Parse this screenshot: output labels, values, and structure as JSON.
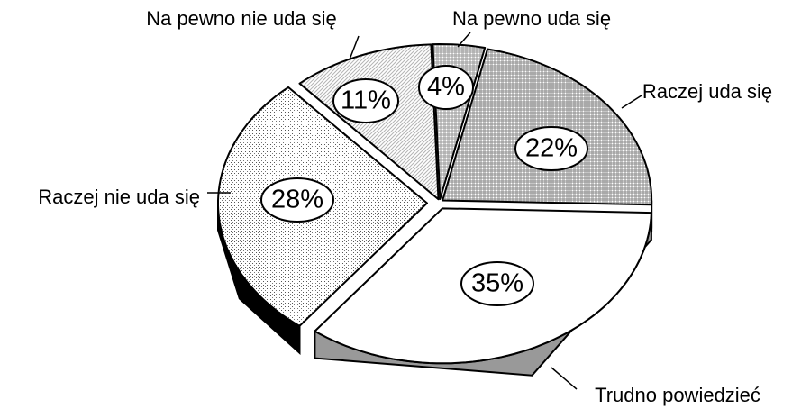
{
  "chart_data": {
    "type": "pie",
    "categories": [
      "Na pewno uda się",
      "Raczej uda się",
      "Trudno powiedzieć",
      "Raczej nie uda się",
      "Na pewno nie uda się"
    ],
    "values": [
      4,
      22,
      35,
      28,
      11
    ],
    "value_labels": [
      "4%",
      "22%",
      "35%",
      "28%",
      "11%"
    ],
    "colors": [
      "#9a9a9a",
      "#8c8c8c",
      "#ffffff",
      "#d6d6d6",
      "#b4b4b4"
    ],
    "side_colors": [
      "#555555",
      "#555555",
      "#999999",
      "#000000",
      "#555555"
    ]
  }
}
